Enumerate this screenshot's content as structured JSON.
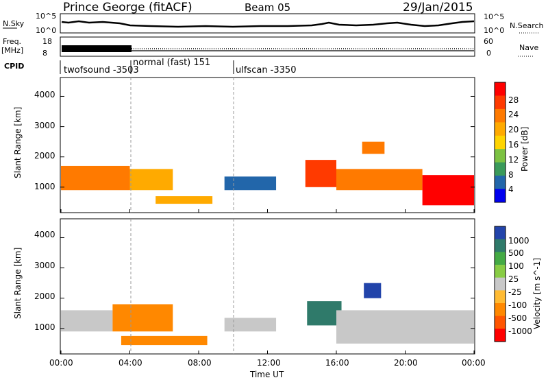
{
  "header": {
    "title": "Prince George (fitACF)",
    "beam": "Beam 05",
    "date": "29/Jan/2015"
  },
  "noise_panel": {
    "left_label": "N.Sky",
    "right_label": "N.Search",
    "ticks": [
      "10^5",
      "10^0"
    ]
  },
  "freq_panel": {
    "left_label_1": "Freq.",
    "left_label_2": "[MHz]",
    "right_label": "Nave",
    "left_ticks": [
      "18",
      "8"
    ],
    "right_ticks": [
      "60",
      "0"
    ]
  },
  "cpid": {
    "label": "CPID",
    "segments": [
      {
        "start_hour": 0,
        "text": "twofsound -3503"
      },
      {
        "start_hour": 4,
        "text": "normal (fast) 151"
      },
      {
        "start_hour": 10,
        "text": "ulfscan -3350"
      }
    ]
  },
  "power_colorbar": {
    "label": "Power [dB]",
    "ticks": [
      "28",
      "24",
      "20",
      "16",
      "12",
      "8",
      "4"
    ],
    "colors": [
      "#ff0000",
      "#ff3a00",
      "#ff7a00",
      "#ffaa00",
      "#ffd400",
      "#7cc242",
      "#3a9a5a",
      "#2266aa",
      "#0000ee"
    ]
  },
  "velocity_colorbar": {
    "label": "Velocity [m s^-1]",
    "ticks": [
      "1000",
      "500",
      "100",
      "25",
      "-25",
      "-100",
      "-500",
      "-1000"
    ],
    "colors": [
      "#2244aa",
      "#2f7a6a",
      "#44aa44",
      "#88cc44",
      "#c8c8c8",
      "#ffbb33",
      "#ff8800",
      "#ff5500",
      "#ff0000"
    ]
  },
  "x_axis": {
    "label": "Time UT",
    "tick_labels": [
      "00:00",
      "04:00",
      "08:00",
      "12:00",
      "16:00",
      "20:00",
      "00:00"
    ]
  },
  "y_axis": {
    "label": "Slant Range [km]",
    "tick_labels": [
      "4000",
      "3000",
      "2000",
      "1000"
    ]
  },
  "chart_data": [
    {
      "type": "heatmap",
      "title": "Power",
      "ylabel": "Slant Range [km]",
      "xlabel": "Time UT",
      "x_range_hours": [
        0,
        24
      ],
      "ylim_km": [
        180,
        4600
      ],
      "bands": [
        {
          "t0": 0.0,
          "t1": 4.0,
          "r_min": 900,
          "r_max": 1700,
          "level_db": 20
        },
        {
          "t0": 4.0,
          "t1": 6.5,
          "r_min": 900,
          "r_max": 1600,
          "level_db": 16
        },
        {
          "t0": 5.5,
          "t1": 8.8,
          "r_min": 450,
          "r_max": 700,
          "level_db": 16
        },
        {
          "t0": 9.5,
          "t1": 12.5,
          "r_min": 900,
          "r_max": 1350,
          "level_db": 8
        },
        {
          "t0": 14.2,
          "t1": 16.0,
          "r_min": 1000,
          "r_max": 1900,
          "level_db": 24
        },
        {
          "t0": 16.0,
          "t1": 21.0,
          "r_min": 900,
          "r_max": 1600,
          "level_db": 20
        },
        {
          "t0": 21.0,
          "t1": 24.0,
          "r_min": 400,
          "r_max": 1400,
          "level_db": 28
        },
        {
          "t0": 17.5,
          "t1": 18.8,
          "r_min": 2100,
          "r_max": 2500,
          "level_db": 20
        }
      ]
    },
    {
      "type": "heatmap",
      "title": "Velocity",
      "ylabel": "Slant Range [km]",
      "xlabel": "Time UT",
      "x_range_hours": [
        0,
        24
      ],
      "ylim_km": [
        180,
        4600
      ],
      "bands": [
        {
          "t0": 0.0,
          "t1": 3.0,
          "r_min": 900,
          "r_max": 1600,
          "level_ms": 0
        },
        {
          "t0": 3.0,
          "t1": 6.5,
          "r_min": 900,
          "r_max": 1800,
          "level_ms": -300
        },
        {
          "t0": 3.5,
          "t1": 8.5,
          "r_min": 450,
          "r_max": 750,
          "level_ms": -150
        },
        {
          "t0": 9.5,
          "t1": 12.5,
          "r_min": 900,
          "r_max": 1350,
          "level_ms": 0
        },
        {
          "t0": 14.3,
          "t1": 16.3,
          "r_min": 1100,
          "r_max": 1900,
          "level_ms": 300
        },
        {
          "t0": 16.0,
          "t1": 24.0,
          "r_min": 500,
          "r_max": 1600,
          "level_ms": 0
        },
        {
          "t0": 17.6,
          "t1": 18.6,
          "r_min": 2000,
          "r_max": 2500,
          "level_ms": 800
        }
      ]
    }
  ]
}
